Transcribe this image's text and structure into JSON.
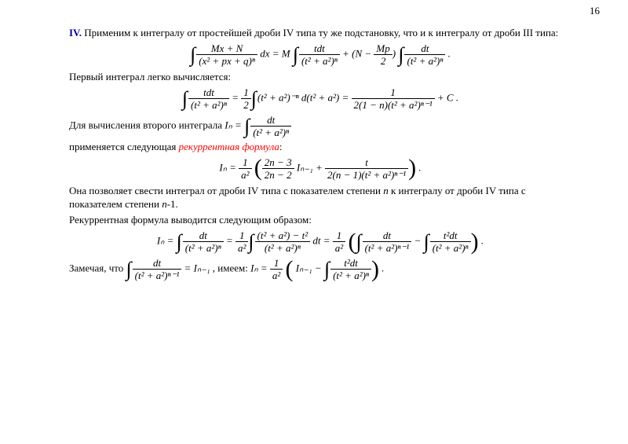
{
  "page_number": "16",
  "colors": {
    "text": "#000000",
    "background": "#ffffff",
    "roman_numeral": "#000099",
    "highlight": "#ff0000"
  },
  "fonts": {
    "body_family": "Times New Roman",
    "body_size_pt": 13,
    "page_number_size_pt": 13
  },
  "text": {
    "roman_label": "IV.",
    "p1_part1": " Применим к интегралу от простейшей дроби  IV  типа ту же подстановку, что и к интегралу от дроби  III типа:",
    "p2": "Первый интеграл легко вычисляется:",
    "p3_prefix": "Для вычисления второго интеграла  ",
    "p4_prefix": "применяется следующая  ",
    "p4_highlight": "рекуррентная формула",
    "p4_suffix": ":",
    "p5": "Она позволяет свести интеграл от дроби  IV типа с показателем степени ",
    "p5_var1": "n",
    "p5_mid": " к интегралу от дроби  IV типа с показателем степени ",
    "p5_var2": "n",
    "p5_end": "-1.",
    "p6": "Рекуррентная формула выводится следующим образом:",
    "p7_prefix": "Замечая, что ",
    "p7_mid": ", имеем: "
  },
  "equations": {
    "eq1": {
      "lhs_num": "Mx + N",
      "lhs_den": "(x² + px + q)ⁿ",
      "lhs_tail": " dx = M",
      "mid_num": "tdt",
      "mid_den": "(t² + a²)ⁿ",
      "plus": " + (N − ",
      "mp_num": "Mp",
      "mp_den": "2",
      "close_paren": ")",
      "rhs_num": "dt",
      "rhs_den": "(t² + a²)ⁿ",
      "period": " ."
    },
    "eq2": {
      "lhs_num": "tdt",
      "lhs_den": "(t² + a²)ⁿ",
      "eq": " = ",
      "half_num": "1",
      "half_den": "2",
      "mid": "(t² + a²)⁻ⁿ d(t² + a²) = ",
      "rhs_num": "1",
      "rhs_den": "2(1 − n)(t² + a²)ⁿ⁻¹",
      "tail": " + C ."
    },
    "In_def": {
      "lhs": "Iₙ = ",
      "num": "dt",
      "den": "(t² + a²)ⁿ"
    },
    "eq3": {
      "lhs": "Iₙ = ",
      "inva2_num": "1",
      "inva2_den": "a²",
      "frac2_num": "2n − 3",
      "frac2_den": "2n − 2",
      "I_prev": " Iₙ₋₁ + ",
      "rhs_num": "t",
      "rhs_den": "2(n − 1)(t² + a²)ⁿ⁻¹",
      "period": " ."
    },
    "eq4": {
      "lhs": "Iₙ = ",
      "f1_num": "dt",
      "f1_den": "(t² + a²)ⁿ",
      "eq1": " = ",
      "inva2_num": "1",
      "inva2_den": "a²",
      "f2_num": "(t² + a²) − t²",
      "f2_den": "(t² + a²)ⁿ",
      "dt2": " dt = ",
      "f3_num": "dt",
      "f3_den": "(t² + a²)ⁿ⁻¹",
      "minus": " − ",
      "f4_num": "t²dt",
      "f4_den": "(t² + a²)ⁿ",
      "period": " ."
    },
    "eq5": {
      "f1_num": "dt",
      "f1_den": "(t² + a²)ⁿ⁻¹",
      "eq": " = Iₙ₋₁",
      "lhs2": "Iₙ = ",
      "inva2_num": "1",
      "inva2_den": "a²",
      "I_prev": " Iₙ₋₁ − ",
      "f2_num": "t²dt",
      "f2_den": "(t² + a²)ⁿ",
      "period": " ."
    }
  }
}
